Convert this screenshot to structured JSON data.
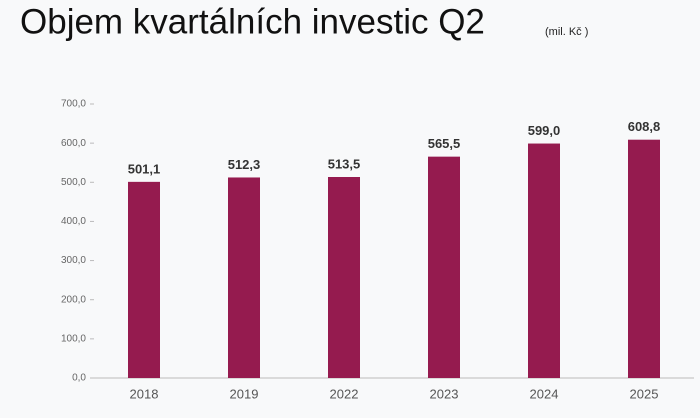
{
  "chart_data": {
    "type": "bar",
    "title": "Objem kvartálních investic Q2",
    "subtitle": "(mil. Kč )",
    "categories": [
      "2018",
      "2019",
      "2022",
      "2023",
      "2024",
      "2025"
    ],
    "values": [
      501.1,
      512.3,
      513.5,
      565.5,
      599.0,
      608.8
    ],
    "value_labels": [
      "501,1",
      "512,3",
      "513,5",
      "565,5",
      "599,0",
      "608,8"
    ],
    "color": "#951b4f",
    "ylim": [
      0,
      700
    ],
    "yticks": [
      {
        "value": 0,
        "label": "0,0"
      },
      {
        "value": 100,
        "label": "100,0"
      },
      {
        "value": 200,
        "label": "200,0"
      },
      {
        "value": 300,
        "label": "300,0"
      },
      {
        "value": 400,
        "label": "400,0"
      },
      {
        "value": 500,
        "label": "500,0"
      },
      {
        "value": 600,
        "label": "600,0"
      },
      {
        "value": 700,
        "label": "700,0"
      }
    ],
    "grid": false
  }
}
